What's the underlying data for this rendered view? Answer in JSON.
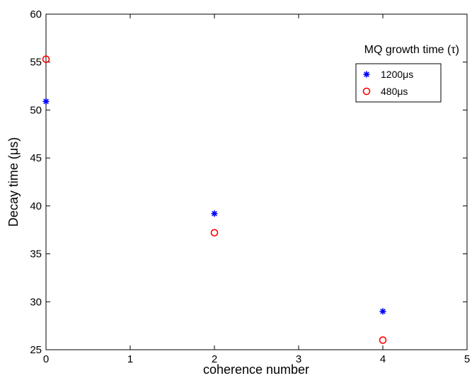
{
  "chart_data": {
    "type": "scatter",
    "title": "",
    "xlabel": "coherence number",
    "ylabel": "Decay time (μs)",
    "xlim": [
      0,
      5
    ],
    "ylim": [
      25,
      60
    ],
    "xticks": [
      0,
      1,
      2,
      3,
      4,
      5
    ],
    "yticks": [
      25,
      30,
      35,
      40,
      45,
      50,
      55,
      60
    ],
    "grid": false,
    "legend": {
      "title": "MQ growth time (τ)",
      "placement": "top-right"
    },
    "series": [
      {
        "name": "1200μs",
        "marker": "asterisk",
        "color": "#0000ff",
        "x": [
          0,
          2,
          4
        ],
        "y": [
          50.9,
          39.2,
          29.0
        ]
      },
      {
        "name": "480μs",
        "marker": "circle",
        "color": "#ff0000",
        "x": [
          0,
          2,
          4
        ],
        "y": [
          55.3,
          37.2,
          26.0
        ]
      }
    ]
  }
}
